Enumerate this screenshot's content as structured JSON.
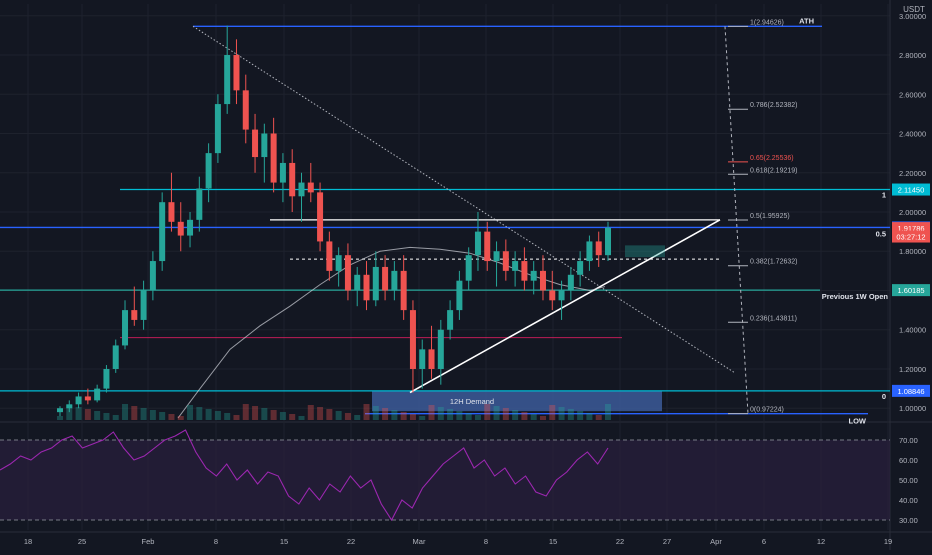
{
  "currency_label": "USDT",
  "colors": {
    "background": "#131722",
    "grid": "#1e222d",
    "up": "#26a69a",
    "down": "#ef5350",
    "fib": "#b2b5be",
    "level_blue": "#2962ff",
    "level_cyan": "#00bcd4",
    "rsi": "#9c27b0",
    "rsi_band": "#2a1f3d",
    "demand_zone": "#3c5a99",
    "ma": "#d1d4dc"
  },
  "chart_data": {
    "type": "candlestick",
    "y_axis": {
      "scale": "linear",
      "range": [
        0.94,
        3.06
      ],
      "tick_labels": [
        "3.00000",
        "2.80000",
        "2.60000",
        "2.40000",
        "2.20000",
        "2.00000",
        "1.80000",
        "1.60000",
        "1.40000",
        "1.20000",
        "1.00000"
      ],
      "tick_values": [
        3.0,
        2.8,
        2.6,
        2.4,
        2.2,
        2.0,
        1.8,
        1.6,
        1.4,
        1.2,
        1.0
      ]
    },
    "x_axis": {
      "tick_labels": [
        "18",
        "25",
        "Feb",
        "8",
        "15",
        "22",
        "Mar",
        "8",
        "15",
        "22",
        "27",
        "Apr",
        "6",
        "12",
        "19"
      ]
    },
    "price_labels": [
      {
        "text": "2.11450",
        "value": 2.1145,
        "color": "#00bcd4"
      },
      {
        "text": "1.92141",
        "value": 1.92141,
        "color": "#2962ff"
      },
      {
        "text": "1.91786",
        "value": 1.91786,
        "color": "#ef5350"
      },
      {
        "text": "03:27:12",
        "value": 1.875,
        "color": "#ef5350"
      },
      {
        "text": "1.60185",
        "value": 1.60185,
        "color": "#26a69a"
      },
      {
        "text": "1.08846",
        "value": 1.08846,
        "color": "#2962ff"
      }
    ],
    "horizontal_levels": [
      {
        "name": "ath",
        "value": 2.94626,
        "color": "#2962ff",
        "label": "ATH"
      },
      {
        "name": "resistance",
        "value": 2.1145,
        "color": "#00bcd4",
        "label": "1"
      },
      {
        "name": "mid",
        "value": 1.92141,
        "color": "#2962ff",
        "label": "0.5"
      },
      {
        "name": "previous-week-open",
        "value": 1.60185,
        "color": "#26a69a",
        "label": "Previous 1W Open"
      },
      {
        "name": "support",
        "value": 1.08846,
        "color": "#00bcd4",
        "label": "0"
      },
      {
        "name": "low",
        "value": 0.97224,
        "color": "#2962ff",
        "label": "LOW"
      }
    ],
    "fib_levels": [
      {
        "ratio_label": "1(2.94626)",
        "value": 2.94626,
        "color": "#b2b5be"
      },
      {
        "ratio_label": "0.786(2.52382)",
        "value": 2.52382,
        "color": "#b2b5be"
      },
      {
        "ratio_label": "0.65(2.25536)",
        "value": 2.25536,
        "color": "#ef5350"
      },
      {
        "ratio_label": "0.618(2.19219)",
        "value": 2.19219,
        "color": "#b2b5be"
      },
      {
        "ratio_label": "0.5(1.95925)",
        "value": 1.95925,
        "color": "#b2b5be"
      },
      {
        "ratio_label": "0.382(1.72632)",
        "value": 1.72632,
        "color": "#b2b5be"
      },
      {
        "ratio_label": "0.236(1.43811)",
        "value": 1.43811,
        "color": "#b2b5be"
      },
      {
        "ratio_label": "0(0.97224)",
        "value": 0.97224,
        "color": "#b2b5be"
      }
    ],
    "demand_zone": {
      "label": "12H Demand",
      "top": 1.08846,
      "bottom": 0.985
    },
    "candles": [
      [
        0.98,
        1.01,
        0.96,
        1.0
      ],
      [
        1.0,
        1.04,
        0.98,
        1.02
      ],
      [
        1.02,
        1.08,
        1.0,
        1.06
      ],
      [
        1.06,
        1.1,
        1.02,
        1.04
      ],
      [
        1.04,
        1.12,
        1.03,
        1.1
      ],
      [
        1.1,
        1.22,
        1.08,
        1.2
      ],
      [
        1.2,
        1.35,
        1.18,
        1.32
      ],
      [
        1.32,
        1.55,
        1.3,
        1.5
      ],
      [
        1.5,
        1.62,
        1.42,
        1.45
      ],
      [
        1.45,
        1.65,
        1.4,
        1.6
      ],
      [
        1.6,
        1.8,
        1.55,
        1.75
      ],
      [
        1.75,
        2.1,
        1.7,
        2.05
      ],
      [
        2.05,
        2.2,
        1.9,
        1.95
      ],
      [
        1.95,
        2.05,
        1.8,
        1.88
      ],
      [
        1.88,
        2.0,
        1.82,
        1.96
      ],
      [
        1.96,
        2.18,
        1.9,
        2.12
      ],
      [
        2.12,
        2.35,
        2.05,
        2.3
      ],
      [
        2.3,
        2.6,
        2.25,
        2.55
      ],
      [
        2.55,
        2.95,
        2.5,
        2.8
      ],
      [
        2.8,
        2.88,
        2.55,
        2.62
      ],
      [
        2.62,
        2.7,
        2.35,
        2.42
      ],
      [
        2.42,
        2.5,
        2.2,
        2.28
      ],
      [
        2.28,
        2.45,
        2.15,
        2.4
      ],
      [
        2.4,
        2.48,
        2.1,
        2.15
      ],
      [
        2.15,
        2.3,
        2.05,
        2.25
      ],
      [
        2.25,
        2.32,
        2.0,
        2.08
      ],
      [
        2.08,
        2.2,
        1.95,
        2.15
      ],
      [
        2.15,
        2.25,
        2.05,
        2.1
      ],
      [
        2.1,
        2.15,
        1.8,
        1.85
      ],
      [
        1.85,
        1.9,
        1.65,
        1.7
      ],
      [
        1.7,
        1.82,
        1.62,
        1.78
      ],
      [
        1.78,
        1.84,
        1.55,
        1.6
      ],
      [
        1.6,
        1.72,
        1.52,
        1.68
      ],
      [
        1.68,
        1.75,
        1.5,
        1.55
      ],
      [
        1.55,
        1.8,
        1.52,
        1.72
      ],
      [
        1.72,
        1.78,
        1.55,
        1.6
      ],
      [
        1.6,
        1.75,
        1.55,
        1.7
      ],
      [
        1.7,
        1.78,
        1.45,
        1.5
      ],
      [
        1.5,
        1.55,
        1.08,
        1.2
      ],
      [
        1.2,
        1.35,
        1.1,
        1.3
      ],
      [
        1.3,
        1.42,
        1.15,
        1.2
      ],
      [
        1.2,
        1.45,
        1.12,
        1.4
      ],
      [
        1.4,
        1.55,
        1.35,
        1.5
      ],
      [
        1.5,
        1.7,
        1.45,
        1.65
      ],
      [
        1.65,
        1.82,
        1.6,
        1.78
      ],
      [
        1.78,
        2.0,
        1.7,
        1.9
      ],
      [
        1.9,
        1.95,
        1.7,
        1.75
      ],
      [
        1.75,
        1.85,
        1.62,
        1.8
      ],
      [
        1.8,
        1.86,
        1.65,
        1.7
      ],
      [
        1.7,
        1.8,
        1.62,
        1.75
      ],
      [
        1.75,
        1.82,
        1.6,
        1.65
      ],
      [
        1.65,
        1.75,
        1.58,
        1.7
      ],
      [
        1.7,
        1.78,
        1.55,
        1.6
      ],
      [
        1.6,
        1.7,
        1.5,
        1.55
      ],
      [
        1.55,
        1.65,
        1.45,
        1.6
      ],
      [
        1.6,
        1.72,
        1.55,
        1.68
      ],
      [
        1.68,
        1.8,
        1.62,
        1.75
      ],
      [
        1.75,
        1.88,
        1.7,
        1.85
      ],
      [
        1.85,
        1.9,
        1.72,
        1.78
      ],
      [
        1.78,
        1.95,
        1.75,
        1.92
      ]
    ],
    "rsi": {
      "tick_labels": [
        "70.00",
        "60.00",
        "50.00",
        "40.00",
        "30.00"
      ],
      "tick_values": [
        70,
        60,
        50,
        40,
        30
      ],
      "range": [
        25,
        78
      ],
      "upper": 70,
      "lower": 30,
      "values": [
        55,
        58,
        62,
        60,
        64,
        66,
        70,
        72,
        66,
        68,
        70,
        74,
        66,
        60,
        62,
        66,
        70,
        72,
        75,
        64,
        56,
        52,
        58,
        50,
        55,
        48,
        54,
        52,
        42,
        38,
        46,
        40,
        48,
        44,
        52,
        46,
        50,
        38,
        30,
        40,
        36,
        46,
        52,
        58,
        62,
        66,
        56,
        60,
        52,
        56,
        48,
        52,
        44,
        42,
        50,
        54,
        60,
        64,
        58,
        66
      ]
    }
  }
}
